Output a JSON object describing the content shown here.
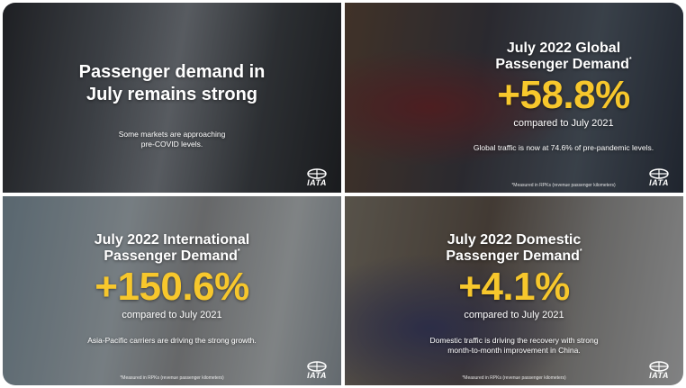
{
  "panels": [
    {
      "title_lines": [
        "Passenger demand in",
        "July remains strong"
      ],
      "body_lines": [
        "Some markets are approaching",
        "pre-COVID levels."
      ],
      "logo": "IATA"
    },
    {
      "title_lines": [
        "July 2022 Global",
        "Passenger Demand"
      ],
      "title_mark": "*",
      "stat": "+58.8%",
      "comparison": "compared to July 2021",
      "note": "Global traffic is now at 74.6% of pre-pandemic levels.",
      "footnote": "*Measured in RPKs (revenue passenger kilometers)",
      "logo": "IATA"
    },
    {
      "title_lines": [
        "July 2022 International",
        "Passenger Demand"
      ],
      "title_mark": "*",
      "stat": "+150.6%",
      "comparison": "compared to July 2021",
      "note": "Asia-Pacific carriers are driving the strong growth.",
      "footnote": "*Measured in RPKs (revenue passenger kilometers)",
      "logo": "IATA"
    },
    {
      "title_lines": [
        "July 2022 Domestic",
        "Passenger Demand"
      ],
      "title_mark": "*",
      "stat": "+4.1%",
      "comparison": "compared to July 2021",
      "note_lines": [
        "Domestic traffic is driving the recovery with strong",
        "month-to-month improvement in China."
      ],
      "footnote": "*Measured in RPKs (revenue passenger kilometers)",
      "logo": "IATA"
    }
  ]
}
